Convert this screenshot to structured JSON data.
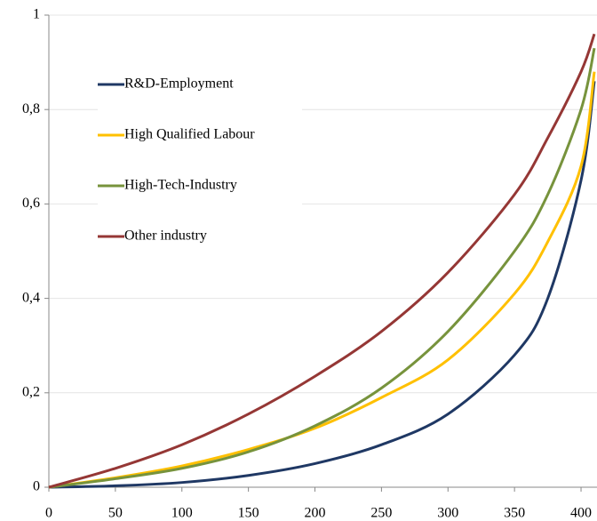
{
  "chart_data": {
    "type": "line",
    "x": [
      0,
      50,
      100,
      150,
      200,
      250,
      300,
      350,
      375,
      400,
      410
    ],
    "series": [
      {
        "name": "R&D-Employment",
        "color": "#1f3864",
        "values": [
          0,
          0.003,
          0.01,
          0.025,
          0.05,
          0.09,
          0.155,
          0.28,
          0.4,
          0.65,
          0.86
        ]
      },
      {
        "name": "High Qualified Labour",
        "color": "#ffc000",
        "values": [
          0,
          0.02,
          0.045,
          0.08,
          0.125,
          0.19,
          0.27,
          0.41,
          0.52,
          0.68,
          0.88
        ]
      },
      {
        "name": "High-Tech-Industry",
        "color": "#77933c",
        "values": [
          0,
          0.018,
          0.04,
          0.075,
          0.13,
          0.21,
          0.33,
          0.5,
          0.62,
          0.8,
          0.93
        ]
      },
      {
        "name": "Other industry",
        "color": "#953735",
        "values": [
          0,
          0.04,
          0.09,
          0.155,
          0.235,
          0.33,
          0.455,
          0.62,
          0.74,
          0.88,
          0.96
        ]
      }
    ],
    "xlim": [
      0,
      412
    ],
    "ylim": [
      0,
      1
    ],
    "xticks": [
      0,
      50,
      100,
      150,
      200,
      250,
      300,
      350,
      400
    ],
    "yticks": [
      0,
      {
        "value": 0.2,
        "label": "0,2"
      },
      {
        "value": 0.4,
        "label": "0,4"
      },
      {
        "value": 0.6,
        "label": "0,6"
      },
      {
        "value": 0.8,
        "label": "0,8"
      },
      1
    ],
    "grid": true,
    "legend": "upper left"
  }
}
